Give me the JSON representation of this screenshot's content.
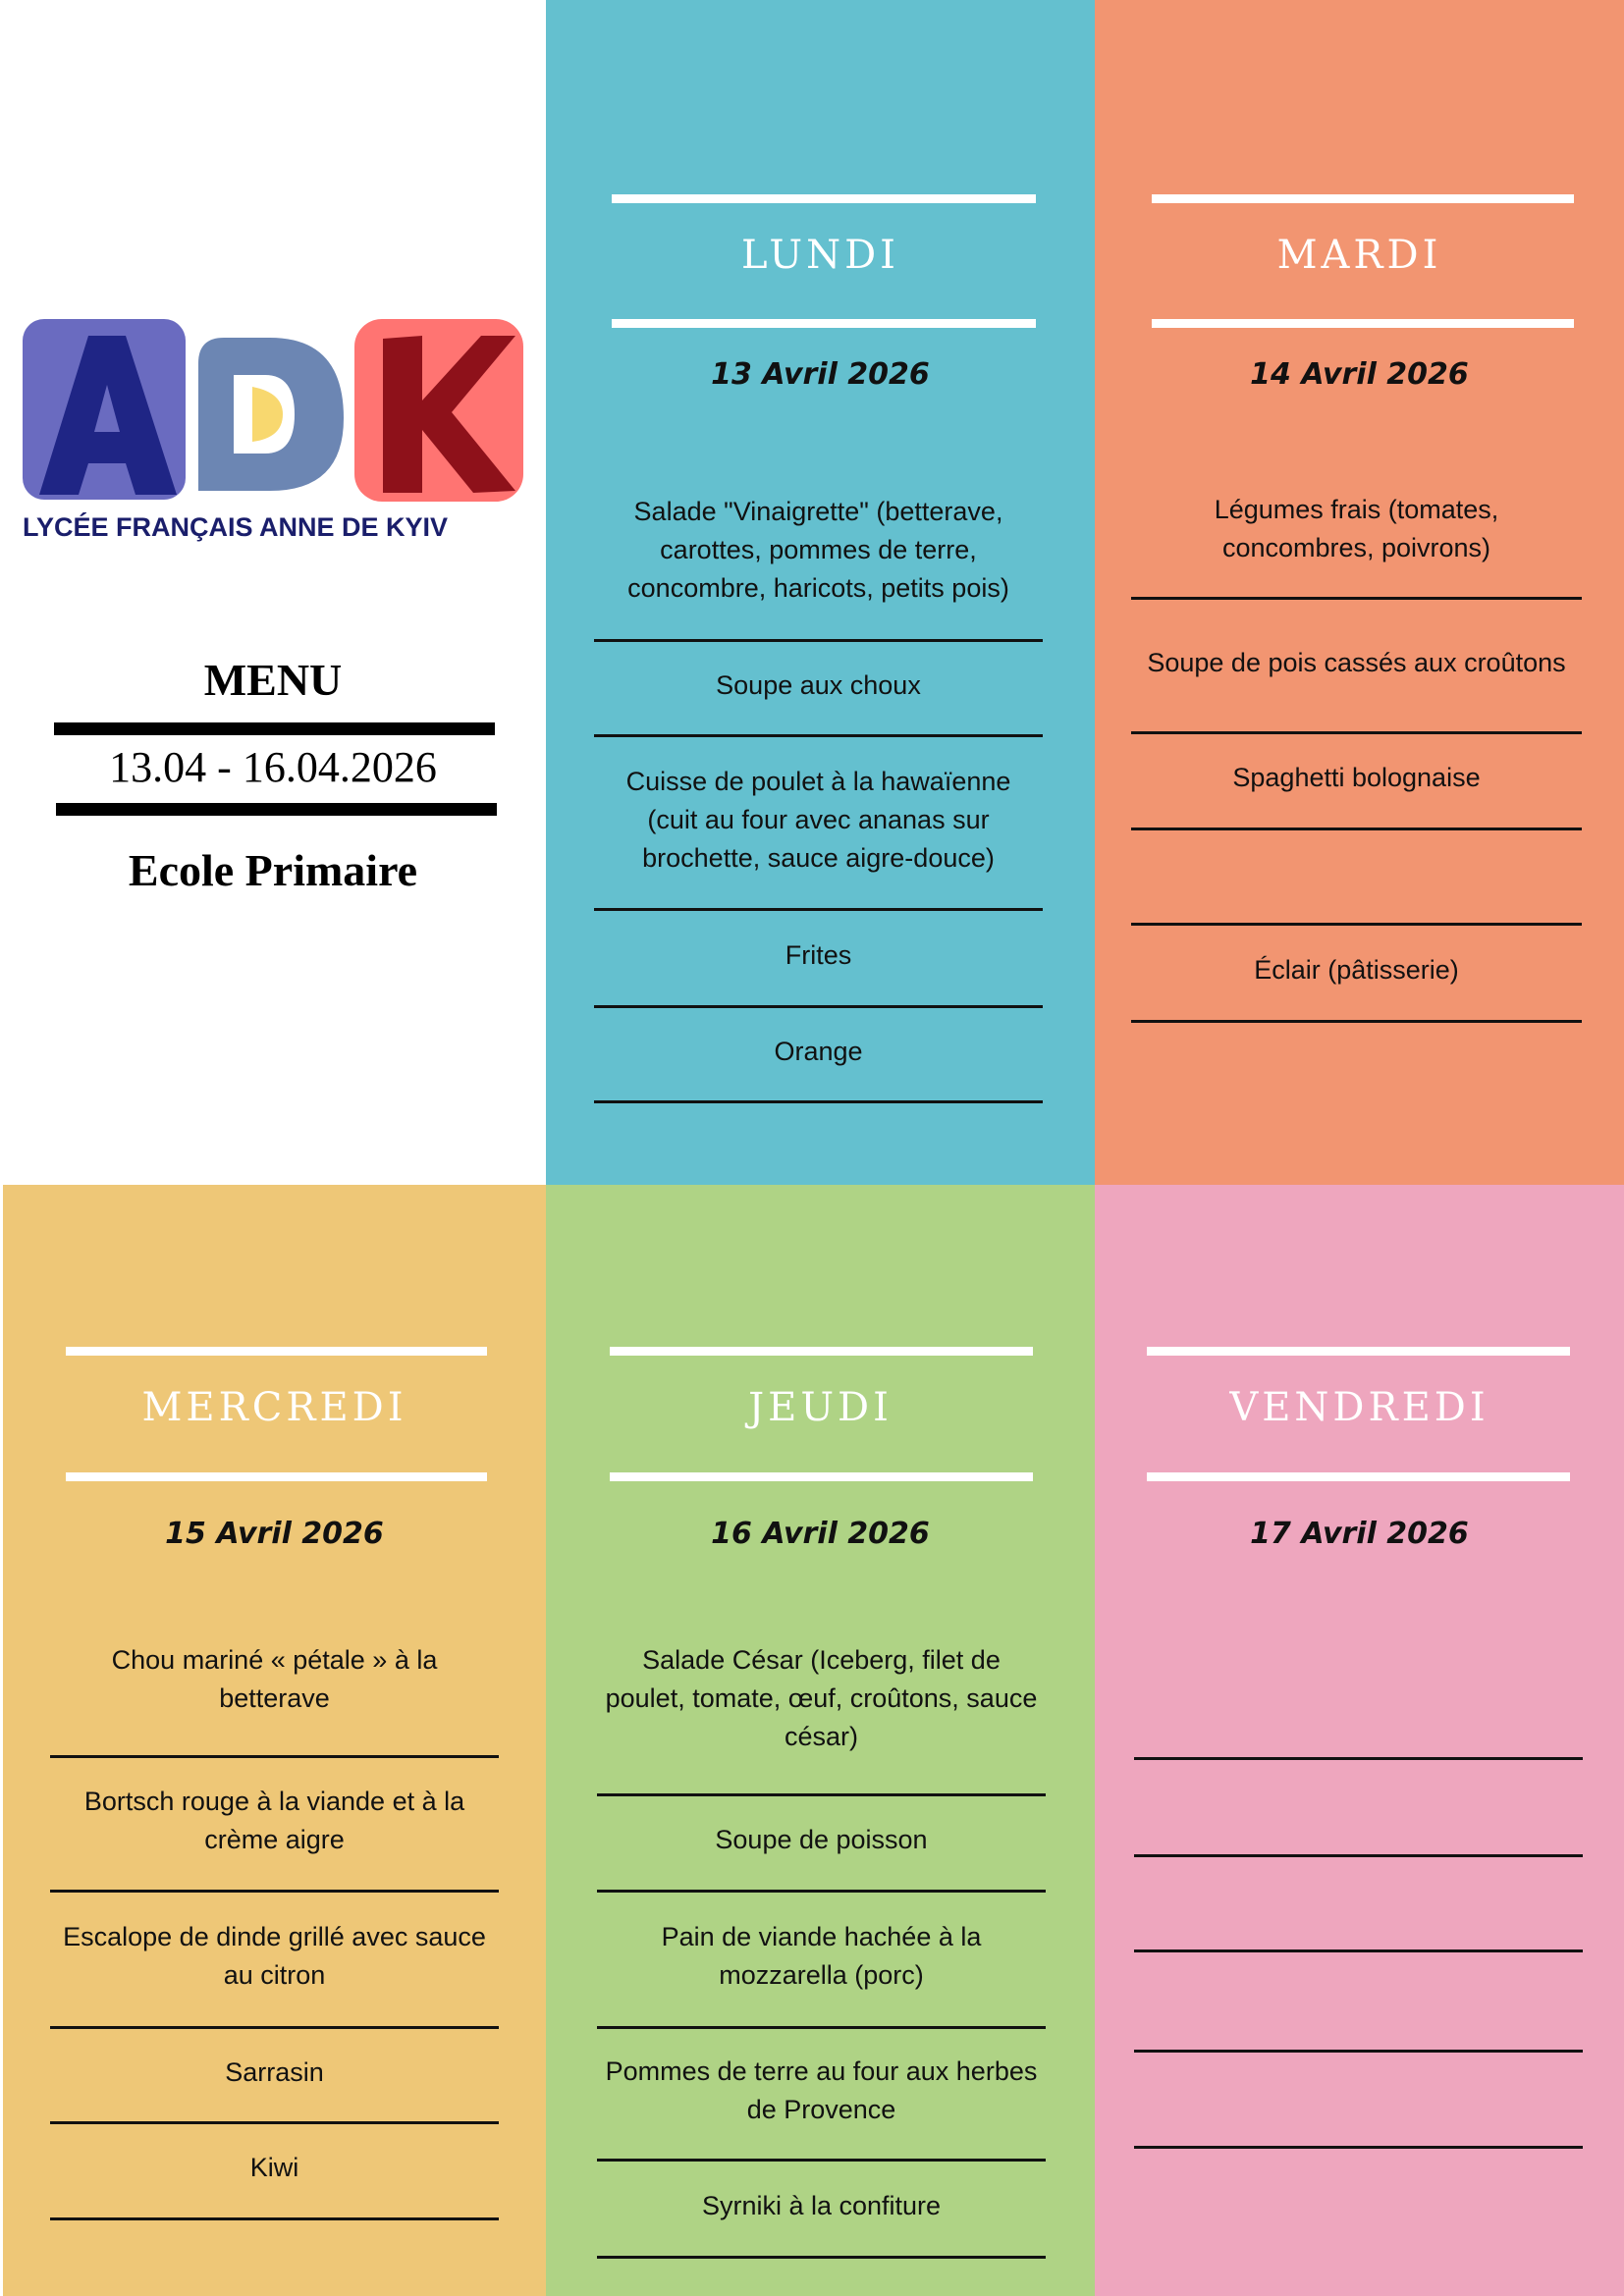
{
  "header": {
    "logo_letters": "ADK",
    "school_name": "LYCÉE FRANÇAIS ANNE DE KYIV",
    "menu_title": "MENU",
    "date_range": "13.04 - 16.04.2026",
    "level": "Ecole Primaire"
  },
  "colors": {
    "lundi": "#64C0CF",
    "mardi": "#F29571",
    "mercredi": "#EEC777",
    "jeudi": "#AFD385",
    "vendredi": "#EEA6BE"
  },
  "days": [
    {
      "key": "lundi",
      "name": "LUNDI",
      "date": "13 Avril 2026",
      "items": [
        "Salade \"Vinaigrette\" (betterave, carottes, pommes de terre, concombre, haricots, petits pois)",
        "Soupe aux choux",
        "Cuisse de poulet à la hawaïenne (cuit au four avec ananas sur brochette, sauce aigre-douce)",
        "Frites",
        "Orange"
      ]
    },
    {
      "key": "mardi",
      "name": "MARDI",
      "date": "14 Avril 2026",
      "items": [
        "Légumes frais (tomates, concombres,  poivrons)",
        "Soupe de pois cassés aux croûtons",
        "Spaghetti bolognaise",
        "",
        "Éclair (pâtisserie)"
      ]
    },
    {
      "key": "mercredi",
      "name": "MERCREDI",
      "date": "15 Avril 2026",
      "items": [
        "Chou mariné « pétale » à la betterave",
        "Bortsch rouge à la viande et à la crème aigre",
        "Escalope de dinde grillé avec sauce au citron",
        "Sarrasin",
        "Kiwi"
      ]
    },
    {
      "key": "jeudi",
      "name": "JEUDI",
      "date": "16 Avril 2026",
      "items": [
        "Salade César (Iceberg, filet de poulet, tomate, œuf, croûtons, sauce césar)",
        "Soupe de poisson",
        "Pain de viande hachée à la mozzarella (porc)",
        "Pommes de terre au four aux herbes de Provence",
        "Syrniki à la confiture"
      ]
    },
    {
      "key": "vendredi",
      "name": "VENDREDI",
      "date": "17 Avril 2026",
      "items": [
        "",
        "",
        "",
        "",
        ""
      ]
    }
  ]
}
